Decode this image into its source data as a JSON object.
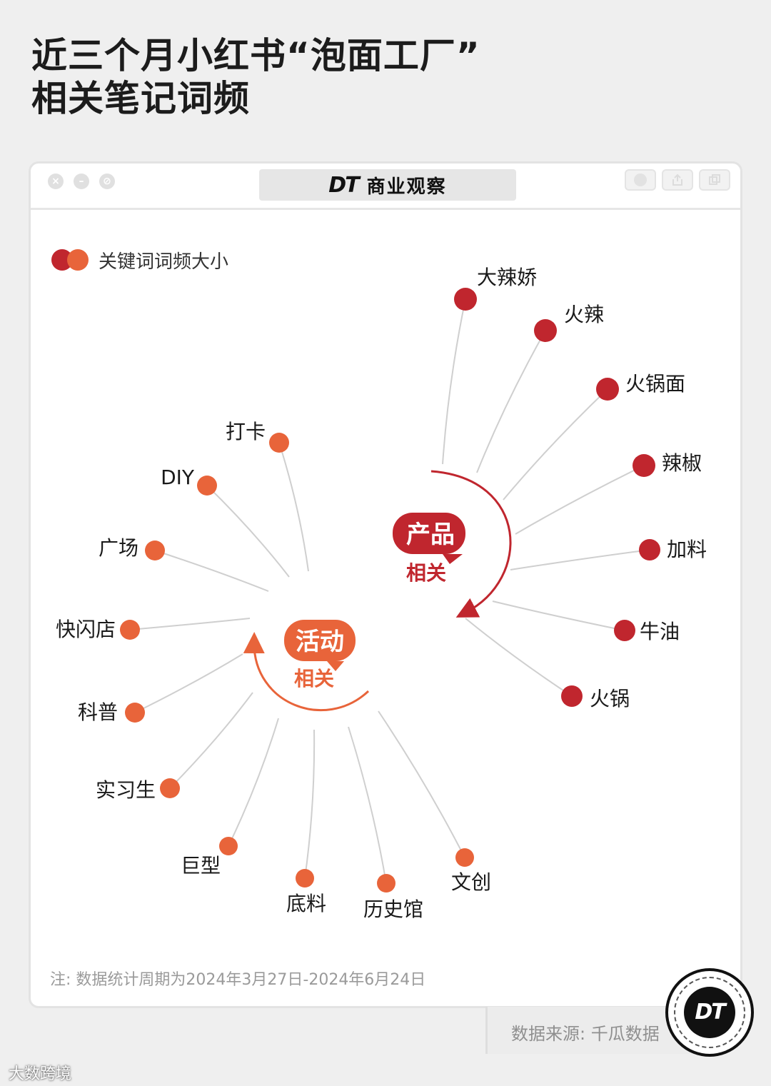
{
  "title": {
    "line1": "近三个月小红书“泡面工厂”",
    "line2": "相关笔记词频"
  },
  "window": {
    "brand_logo": "DT",
    "brand_name": "商业观察",
    "controls": [
      "close-icon",
      "minimize-icon",
      "block-icon"
    ],
    "toolbar_buttons": [
      "record-icon",
      "share-icon",
      "copy-icon"
    ]
  },
  "legend": {
    "label": "关键词词频大小",
    "colors": [
      "#c0262e",
      "#e8643a"
    ]
  },
  "diagram": {
    "product_hub": {
      "title": "产品",
      "subtitle": "相关",
      "color": "#c0262e"
    },
    "activity_hub": {
      "title": "活动",
      "subtitle": "相关",
      "color": "#e8643a"
    },
    "product_keywords": [
      "大辣娇",
      "火辣",
      "火锅面",
      "辣椒",
      "加料",
      "牛油",
      "火锅"
    ],
    "activity_keywords": [
      "打卡",
      "DIY",
      "广场",
      "快闪店",
      "科普",
      "实习生",
      "巨型",
      "底料",
      "历史馆",
      "文创"
    ]
  },
  "note": "注: 数据统计周期为2024年3月27日-2024年6月24日",
  "source": "数据来源: 千瓜数据",
  "badge": "DT",
  "corner_watermark": "大数跨境"
}
